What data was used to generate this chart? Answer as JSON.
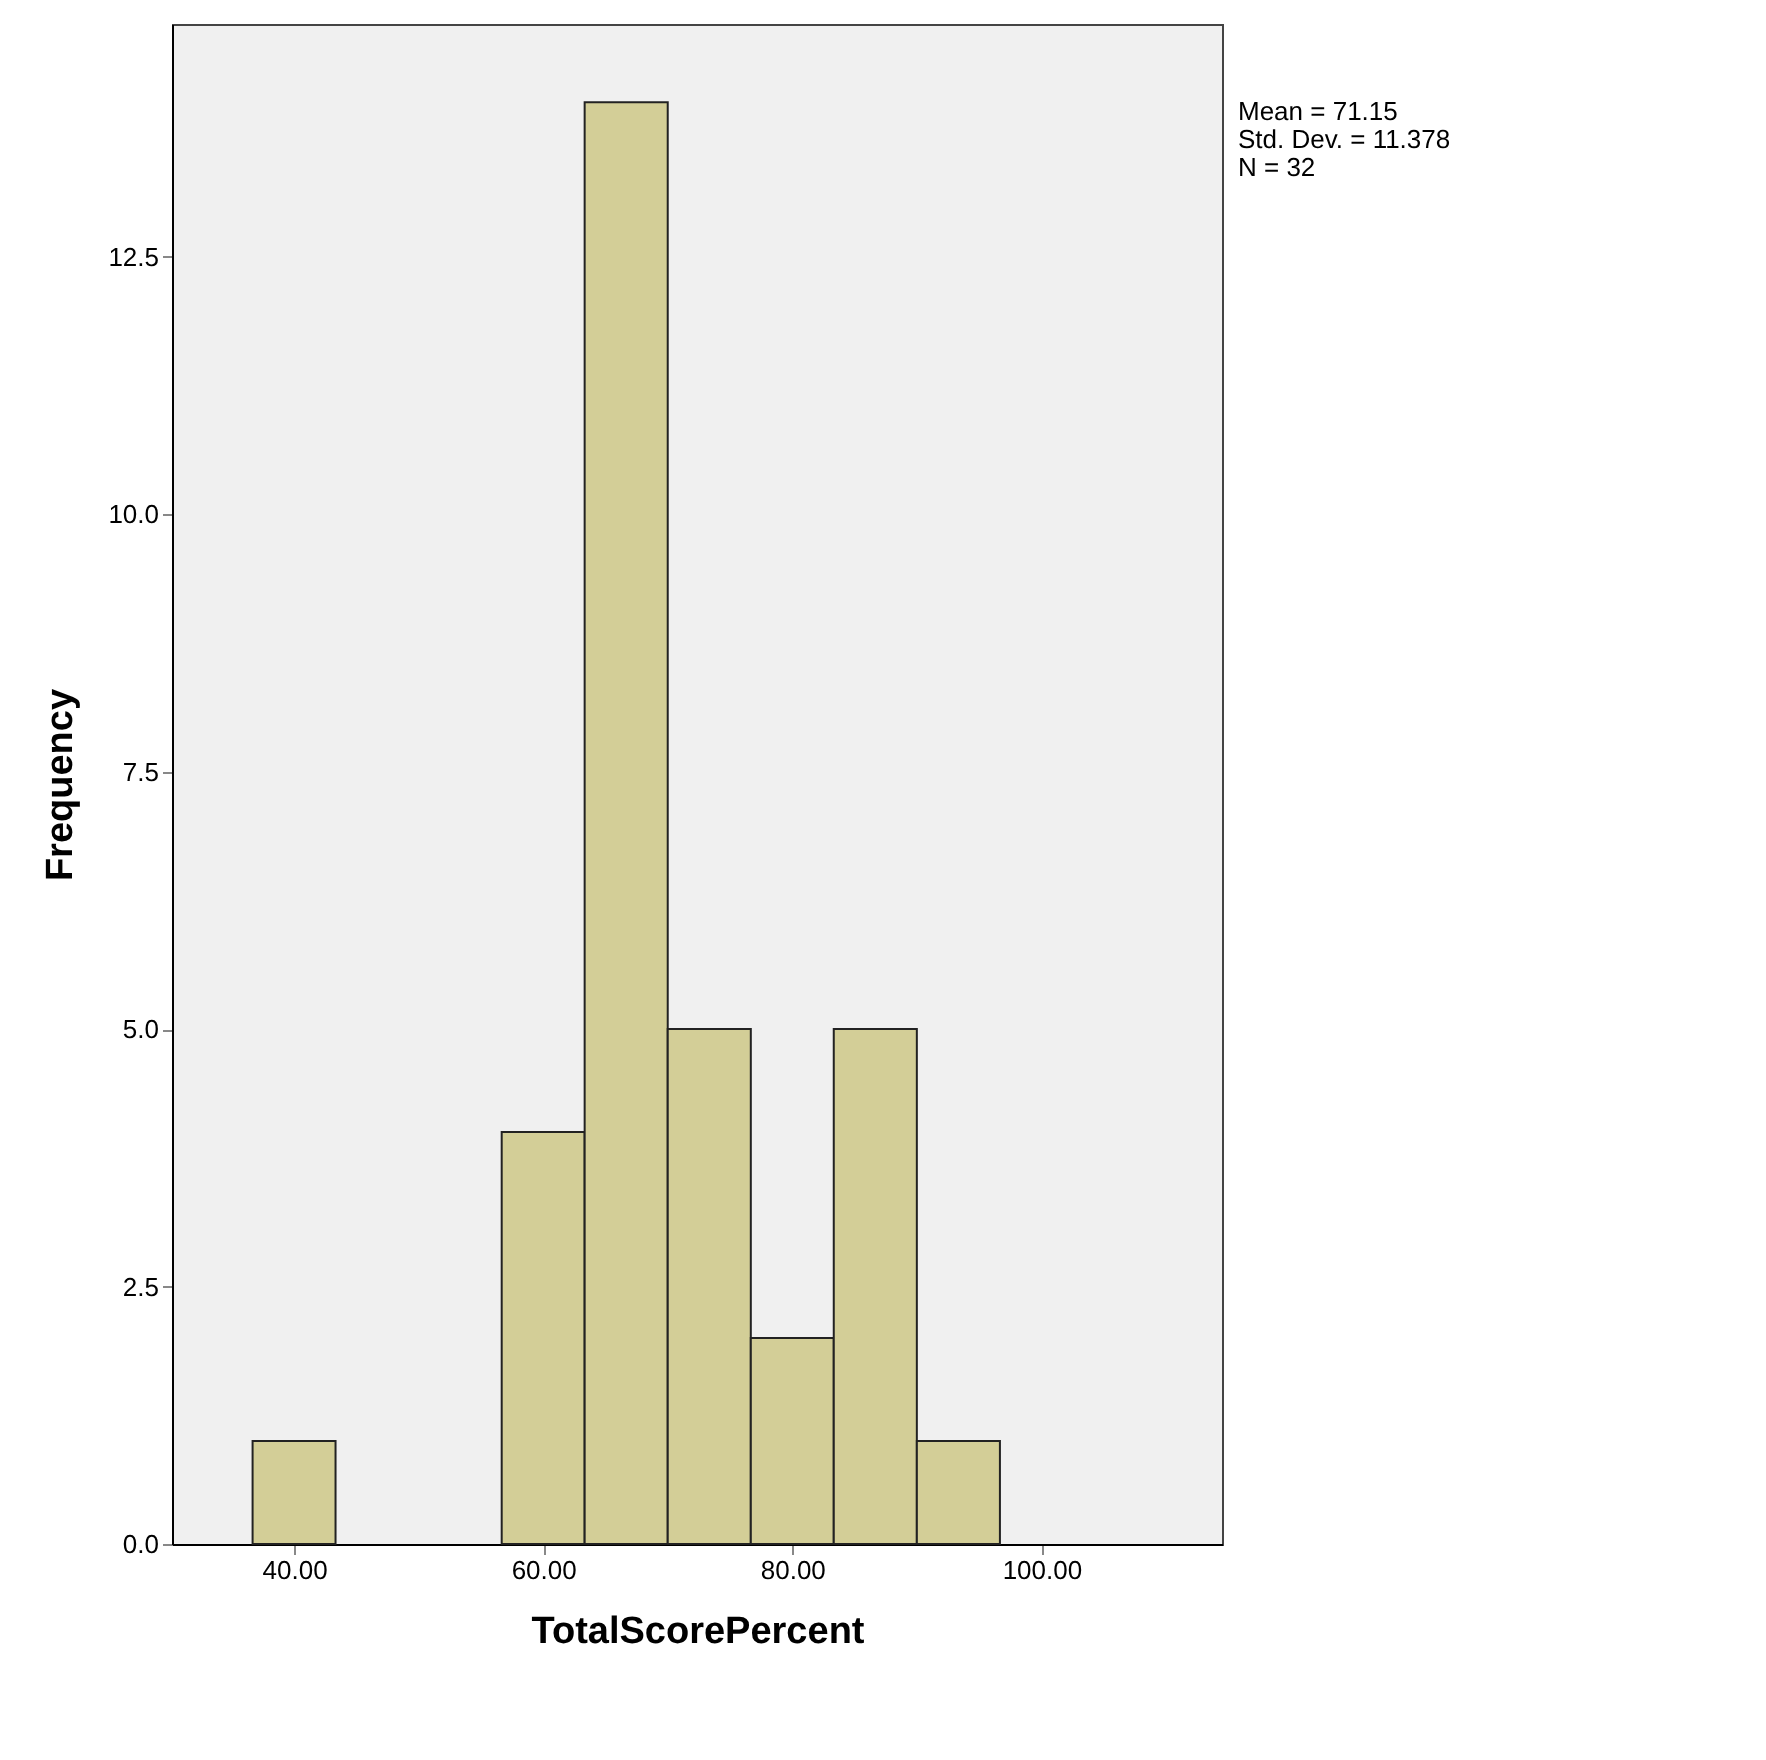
{
  "chart_data": {
    "type": "histogram",
    "xlabel": "TotalScorePercent",
    "ylabel": "Frequency",
    "bins": [
      36.67,
      43.33,
      50,
      56.67,
      63.33,
      70,
      76.67,
      83.33,
      90,
      96.67
    ],
    "values": [
      1,
      0,
      0,
      4,
      14,
      5,
      2,
      5,
      1
    ],
    "color": "#d3ce97",
    "xlim": [
      30.2,
      114.5
    ],
    "ylim": [
      0,
      14.76
    ],
    "xticks": [
      {
        "value": 40,
        "label": "40.00"
      },
      {
        "value": 60,
        "label": "60.00"
      },
      {
        "value": 80,
        "label": "80.00"
      },
      {
        "value": 100,
        "label": "100.00"
      }
    ],
    "yticks": [
      {
        "value": 0,
        "label": "0.0"
      },
      2.5,
      {
        "value": 5,
        "label": "5.0"
      },
      7.5,
      {
        "value": 10,
        "label": "10.0"
      },
      12.5
    ],
    "grid": false,
    "annotations": [
      "Mean = 71.15",
      "Std. Dev. = 11.378",
      "N = 32"
    ]
  }
}
